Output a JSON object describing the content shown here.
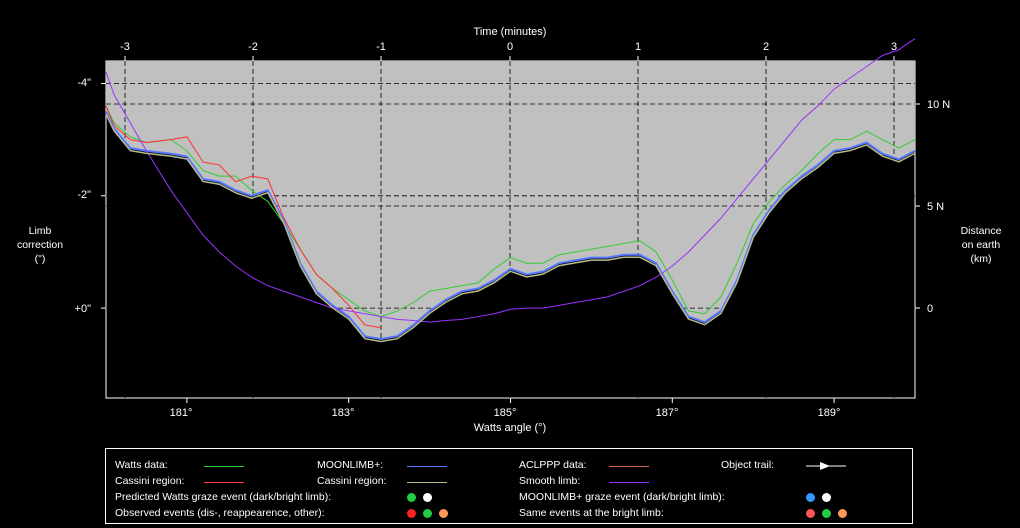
{
  "axes": {
    "top_title": "Time (minutes)",
    "bottom_title": "Watts angle (°)",
    "left_title": [
      "Limb",
      "correction",
      "(\")"
    ],
    "right_title": [
      "Distance",
      "on earth",
      "(km)"
    ],
    "top_ticks": [
      "-3",
      "-2",
      "-1",
      "0",
      "1",
      "2",
      "3"
    ],
    "bottom_ticks": [
      "181°",
      "183°",
      "185°",
      "187°",
      "189°"
    ],
    "left_ticks": [
      "-4\"",
      "-2\"",
      "+0\""
    ],
    "right_ticks": [
      "10 N",
      "5 N",
      "0"
    ]
  },
  "legend": {
    "watts_data": "Watts data:",
    "cassini_region_1": "Cassini region:",
    "moonlimb": "MOONLIMB+:",
    "cassini_region_2": "Cassini region:",
    "aclppp": "ACLPPP data:",
    "smooth": "Smooth limb:",
    "trail": "Object trail:",
    "pred_watts": "Predicted Watts graze event (dark/bright limb):",
    "observed": "Observed events (dis-, reappearence, other):",
    "moonlimb_graze": "MOONLIMB+ graze event (dark/bright limb):",
    "same_bright": "Same events at the bright limb:"
  },
  "colors": {
    "watts": "#33cc33",
    "cassini": "#ff3030",
    "moonlimb": "#5577ff",
    "cassini2": "#bbbb88",
    "aclppp": "#cc6655",
    "smooth": "#9933ff",
    "fill": "#c0c0c0",
    "dot_green": "#22cc44",
    "dot_white": "#ffffff",
    "dot_blue": "#3399ff",
    "dot_red": "#ff2222",
    "dot_orange": "#ff9955",
    "dot_salmon": "#ff5555"
  },
  "chart_data": {
    "type": "line",
    "xlabel": "Watts angle (°)",
    "ylabel": "Limb correction (\")",
    "xlim": [
      180.0,
      190.0
    ],
    "ylim": [
      1.6,
      -4.4
    ],
    "top_axis": {
      "label": "Time (minutes)",
      "ticks": [
        -3,
        -2,
        -1,
        0,
        1,
        2,
        3
      ]
    },
    "right_axis": {
      "label": "Distance on earth (km)",
      "ticks": [
        "10 N",
        "5 N",
        "0"
      ]
    },
    "x": [
      180.0,
      180.1,
      180.3,
      180.5,
      180.8,
      181.0,
      181.2,
      181.4,
      181.6,
      181.8,
      182.0,
      182.2,
      182.4,
      182.6,
      182.8,
      183.0,
      183.2,
      183.4,
      183.6,
      183.8,
      184.0,
      184.2,
      184.4,
      184.6,
      184.8,
      185.0,
      185.2,
      185.4,
      185.6,
      185.8,
      186.0,
      186.2,
      186.4,
      186.6,
      186.8,
      187.0,
      187.2,
      187.4,
      187.6,
      187.8,
      188.0,
      188.2,
      188.4,
      188.6,
      188.8,
      189.0,
      189.2,
      189.4,
      189.6,
      189.8,
      190.0
    ],
    "series": [
      {
        "name": "Watts data:",
        "values": [
          -3.6,
          -3.3,
          -3.05,
          -2.95,
          -3.0,
          -2.8,
          -2.45,
          -2.35,
          -2.35,
          -2.1,
          -1.9,
          -1.5,
          -1.05,
          -0.6,
          -0.35,
          -0.15,
          0.05,
          0.15,
          0.05,
          -0.1,
          -0.3,
          -0.35,
          -0.4,
          -0.45,
          -0.7,
          -0.9,
          -0.8,
          -0.8,
          -0.95,
          -1.0,
          -1.05,
          -1.1,
          -1.15,
          -1.2,
          -1.0,
          -0.5,
          0.05,
          0.1,
          -0.2,
          -0.8,
          -1.5,
          -1.9,
          -2.2,
          -2.45,
          -2.75,
          -3.0,
          -3.0,
          -3.15,
          -3.0,
          -2.85,
          -3.0
        ]
      },
      {
        "name": "Cassini region:",
        "values": [
          -3.6,
          -3.25,
          -3.0,
          -2.95,
          -3.0,
          -3.05,
          -2.6,
          -2.55,
          -2.25,
          -2.35,
          -2.3,
          -1.6,
          -1.05,
          -0.6,
          -0.35,
          -0.05,
          0.3,
          0.35,
          null,
          null,
          null,
          null,
          null,
          null,
          null,
          null,
          null,
          null,
          null,
          null,
          null,
          null,
          null,
          null,
          null,
          null,
          null,
          null,
          null,
          null,
          null,
          null,
          null,
          null,
          null,
          null,
          null,
          null,
          null,
          null,
          null
        ]
      },
      {
        "name": "MOONLIMB+:",
        "values": [
          -3.5,
          -3.2,
          -2.85,
          -2.8,
          -2.75,
          -2.7,
          -2.3,
          -2.25,
          -2.1,
          -2.0,
          -2.1,
          -1.55,
          -0.8,
          -0.3,
          -0.05,
          0.15,
          0.5,
          0.55,
          0.5,
          0.3,
          0.05,
          -0.15,
          -0.3,
          -0.35,
          -0.5,
          -0.7,
          -0.6,
          -0.65,
          -0.8,
          -0.85,
          -0.9,
          -0.9,
          -0.95,
          -0.95,
          -0.8,
          -0.3,
          0.15,
          0.25,
          0.05,
          -0.5,
          -1.3,
          -1.75,
          -2.1,
          -2.35,
          -2.55,
          -2.8,
          -2.85,
          -2.95,
          -2.75,
          -2.65,
          -2.8
        ]
      },
      {
        "name": "Smooth limb:",
        "values": [
          -4.2,
          -3.8,
          -3.3,
          -2.8,
          -2.1,
          -1.7,
          -1.3,
          -1.0,
          -0.75,
          -0.55,
          -0.4,
          -0.3,
          -0.2,
          -0.1,
          0.0,
          0.05,
          0.1,
          0.15,
          0.2,
          0.22,
          0.25,
          0.22,
          0.2,
          0.15,
          0.1,
          0.02,
          0.0,
          0.0,
          -0.05,
          -0.1,
          -0.15,
          -0.2,
          -0.3,
          -0.4,
          -0.55,
          -0.75,
          -1.0,
          -1.3,
          -1.6,
          -1.95,
          -2.3,
          -2.65,
          -3.0,
          -3.35,
          -3.6,
          -3.9,
          -4.1,
          -4.3,
          -4.5,
          -4.6,
          -4.8
        ]
      }
    ]
  }
}
